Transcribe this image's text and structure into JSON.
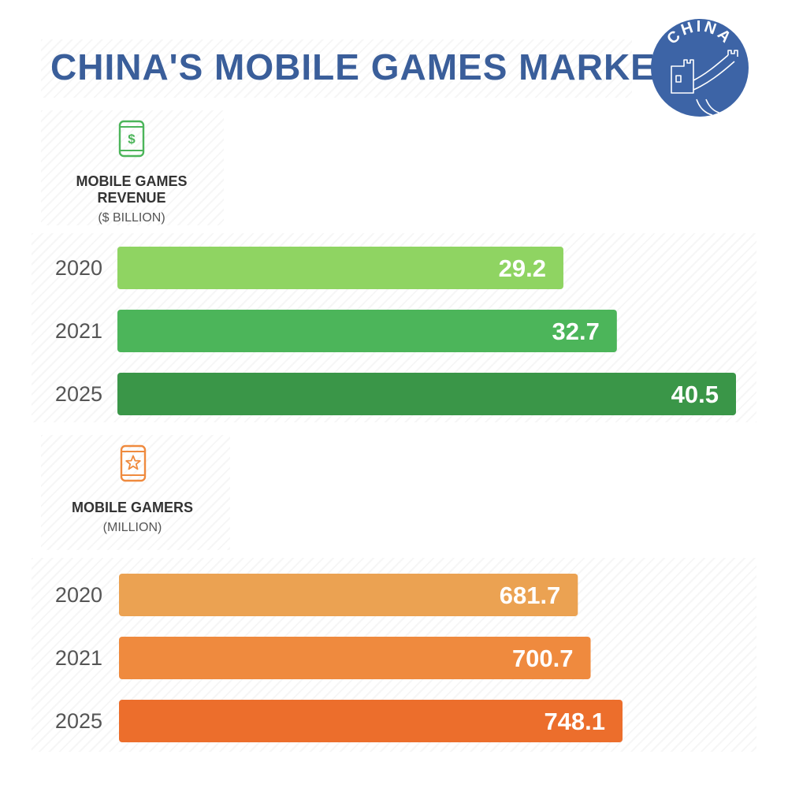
{
  "title": "CHINA'S MOBILE GAMES MARKET",
  "badge": {
    "text": "CHINA",
    "icon": "great-wall-icon",
    "color": "#3d64a6"
  },
  "colors": {
    "revenue": [
      "#8fd462",
      "#4cb55a",
      "#3a9648"
    ],
    "gamers": [
      "#eba252",
      "#ef8a3e",
      "#ec6e2c"
    ],
    "year_label": "#555555",
    "title": "#3a5e9a"
  },
  "chart_data": [
    {
      "type": "bar",
      "orientation": "horizontal",
      "title": "MOBILE GAMES REVENUE",
      "unit": "($ BILLION)",
      "icon": "phone-dollar-icon",
      "categories": [
        "2020",
        "2021",
        "2025"
      ],
      "values": [
        29.2,
        32.7,
        40.5
      ],
      "value_labels": [
        "29.2",
        "32.7",
        "40.5"
      ],
      "xlim": [
        0,
        40.5
      ],
      "grid": false
    },
    {
      "type": "bar",
      "orientation": "horizontal",
      "title": "MOBILE GAMERS",
      "unit": "(MILLION)",
      "icon": "phone-star-icon",
      "categories": [
        "2020",
        "2021",
        "2025"
      ],
      "values": [
        681.7,
        700.7,
        748.1
      ],
      "value_labels": [
        "681.7",
        "700.7",
        "748.1"
      ],
      "xlim": [
        0,
        919
      ],
      "grid": false
    }
  ]
}
